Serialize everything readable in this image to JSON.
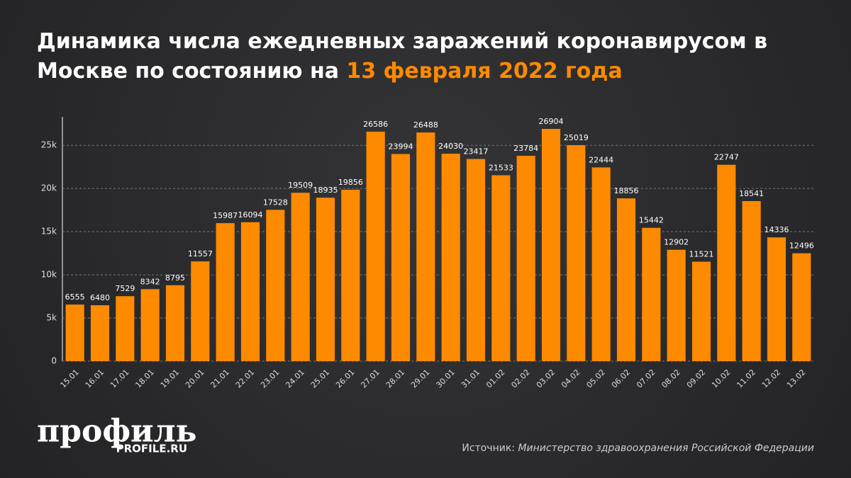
{
  "chart_data": {
    "type": "bar",
    "title": "Динамика числа ежедневных заражений коронавирусом в Москве по состоянию на",
    "title_highlight": "13 февраля 2022 года",
    "categories": [
      "15.01",
      "16.01",
      "17.01",
      "18.01",
      "19.01",
      "20.01",
      "21.01",
      "22.01",
      "23.01",
      "24.01",
      "25.01",
      "26.01",
      "27.01",
      "28.01",
      "29.01",
      "30.01",
      "31.01",
      "01.02",
      "02.02",
      "03.02",
      "04.02",
      "05.02",
      "06.02",
      "07.02",
      "08.02",
      "09.02",
      "10.02",
      "11.02",
      "12.02",
      "13.02"
    ],
    "values": [
      6555,
      6480,
      7529,
      8342,
      8795,
      11557,
      15987,
      16094,
      17528,
      19509,
      18935,
      19856,
      26586,
      23994,
      26488,
      24030,
      23417,
      21533,
      23784,
      26904,
      25019,
      22444,
      18856,
      15442,
      12902,
      11521,
      22747,
      18541,
      14336,
      12496
    ],
    "color": "#fe8a00",
    "ylim": [
      0,
      28300
    ],
    "yticks": [
      0,
      {
        "value": 5000,
        "label": "5k"
      },
      {
        "value": 10000,
        "label": "10k"
      },
      {
        "value": 15000,
        "label": "15k"
      },
      {
        "value": 20000,
        "label": "20k"
      },
      {
        "value": 25000,
        "label": "25k"
      }
    ],
    "grid": true,
    "logo": "профиль",
    "logo_site": "PROFILE.RU",
    "source_label": "Источник:",
    "source": "Министерство здравоохранения Российской Федерации"
  }
}
